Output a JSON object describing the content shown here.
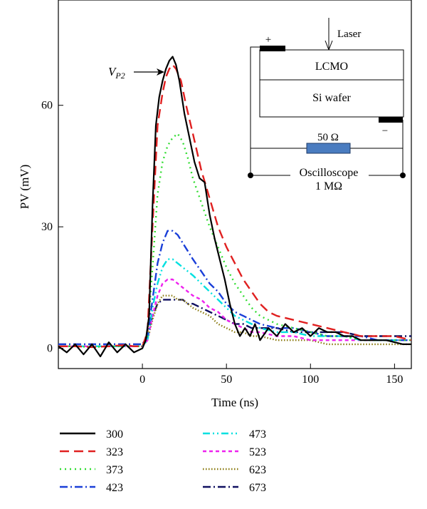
{
  "chart_data": {
    "type": "line",
    "xlabel": "Time (ns)",
    "ylabel": "PV (mV)",
    "xlim": [
      -50,
      160
    ],
    "ylim": [
      -5,
      86
    ],
    "x_ticks": [
      "0",
      "50",
      "100",
      "150"
    ],
    "y_ticks": [
      "0",
      "30",
      "60"
    ],
    "x_tick_values": [
      0,
      50,
      100,
      150
    ],
    "y_tick_values": [
      0,
      30,
      60
    ],
    "legend_position": "below",
    "series": [
      {
        "name": "300",
        "color": "#000000",
        "dash": "solid",
        "x": [
          -50,
          -45,
          -40,
          -35,
          -30,
          -25,
          -20,
          -15,
          -10,
          -5,
          0,
          2,
          4,
          6,
          8,
          10,
          12,
          14,
          16,
          18,
          20,
          22,
          25,
          28,
          31,
          34,
          37,
          40,
          43,
          46,
          49,
          52,
          55,
          58,
          61,
          64,
          67,
          70,
          75,
          80,
          85,
          90,
          95,
          100,
          105,
          110,
          115,
          120,
          125,
          130,
          135,
          140,
          145,
          150,
          155,
          160
        ],
        "y": [
          0.5,
          -1,
          1,
          -1.5,
          1,
          -2,
          1.5,
          -1,
          1,
          -1,
          0,
          2,
          8,
          35,
          55,
          62,
          66,
          69,
          71,
          72,
          70,
          66,
          58,
          52,
          46,
          42,
          41,
          33,
          27,
          22,
          17,
          11,
          6,
          3,
          5,
          3,
          6,
          2,
          5,
          3,
          6,
          4,
          5,
          3,
          5,
          4,
          4,
          3,
          3,
          2,
          2,
          2,
          2,
          1.5,
          1,
          1
        ]
      },
      {
        "name": "323",
        "color": "#e02020",
        "dash": "long",
        "x": [
          -50,
          -40,
          -30,
          -20,
          -10,
          -5,
          0,
          3,
          6,
          9,
          12,
          14,
          16,
          18,
          20,
          23,
          26,
          30,
          35,
          40,
          45,
          50,
          55,
          60,
          65,
          70,
          75,
          80,
          90,
          100,
          110,
          120,
          130,
          140,
          150,
          160
        ],
        "y": [
          0.5,
          0.5,
          0.3,
          0.5,
          0.8,
          0.5,
          0.5,
          4,
          30,
          55,
          63,
          67,
          69,
          70,
          69,
          66,
          60,
          53,
          44,
          37,
          30,
          25,
          21,
          17,
          14,
          11,
          9,
          8,
          7,
          6,
          5,
          4,
          3,
          3,
          3,
          2
        ]
      },
      {
        "name": "373",
        "color": "#33dd33",
        "dash": "dot",
        "x": [
          -50,
          -40,
          -30,
          -20,
          -10,
          -5,
          0,
          3,
          6,
          9,
          12,
          15,
          18,
          21,
          24,
          27,
          30,
          35,
          40,
          45,
          50,
          55,
          60,
          65,
          70,
          80,
          90,
          100,
          110,
          120,
          130,
          140,
          150,
          160
        ],
        "y": [
          0.5,
          0.5,
          0.3,
          0.5,
          0.5,
          0.5,
          0.5,
          3,
          20,
          38,
          46,
          50,
          52,
          53,
          51,
          47,
          42,
          36,
          30,
          25,
          20,
          16,
          13,
          10,
          8,
          6,
          5,
          4,
          3,
          3,
          2,
          2,
          2,
          2
        ]
      },
      {
        "name": "423",
        "color": "#1a3fd8",
        "dash": "dashdot",
        "x": [
          -50,
          -40,
          -30,
          -20,
          -10,
          -5,
          0,
          3,
          6,
          9,
          12,
          15,
          18,
          21,
          24,
          27,
          30,
          35,
          40,
          45,
          50,
          55,
          60,
          65,
          70,
          80,
          90,
          100,
          110,
          120,
          130,
          140,
          150,
          160
        ],
        "y": [
          1,
          1,
          1,
          1,
          1,
          1,
          1,
          3,
          12,
          21,
          26,
          29,
          29,
          28,
          26,
          24,
          22,
          19,
          16,
          14,
          11,
          9,
          8,
          7,
          6,
          5,
          5,
          4,
          3,
          3,
          3,
          2,
          2,
          2
        ]
      },
      {
        "name": "473",
        "color": "#00e0e0",
        "dash": "dashdotdot",
        "x": [
          -50,
          -40,
          -30,
          -20,
          -10,
          -5,
          0,
          3,
          6,
          9,
          12,
          15,
          18,
          21,
          24,
          27,
          30,
          35,
          40,
          45,
          50,
          55,
          60,
          65,
          70,
          80,
          90,
          100,
          110,
          120,
          130,
          140,
          150,
          160
        ],
        "y": [
          0.5,
          0.5,
          0.5,
          0.5,
          0.5,
          0.5,
          0.5,
          2,
          10,
          16,
          20,
          22,
          22,
          21,
          20,
          19,
          18,
          16,
          14,
          12,
          10,
          8,
          7,
          6,
          5,
          4,
          4,
          3,
          3,
          3,
          2,
          2,
          2,
          2
        ]
      },
      {
        "name": "523",
        "color": "#ee22ee",
        "dash": "short",
        "x": [
          -50,
          -40,
          -30,
          -20,
          -10,
          -5,
          0,
          3,
          6,
          9,
          12,
          15,
          18,
          21,
          24,
          27,
          30,
          35,
          40,
          45,
          50,
          55,
          60,
          65,
          70,
          80,
          90,
          100,
          110,
          120,
          130,
          140,
          150,
          160
        ],
        "y": [
          0.5,
          0.5,
          0.5,
          0.5,
          0.5,
          0.5,
          0.5,
          2,
          8,
          13,
          16,
          17,
          17,
          16,
          15,
          14,
          13,
          12,
          10,
          9,
          7,
          6,
          5,
          4,
          4,
          3,
          3,
          2,
          2,
          2,
          2,
          2,
          2,
          2
        ]
      },
      {
        "name": "623",
        "color": "#8a7a10",
        "dash": "fine",
        "x": [
          -50,
          -40,
          -30,
          -20,
          -10,
          -5,
          0,
          3,
          6,
          9,
          12,
          15,
          18,
          21,
          24,
          27,
          30,
          35,
          40,
          45,
          50,
          55,
          60,
          65,
          70,
          80,
          90,
          100,
          110,
          120,
          130,
          140,
          150,
          160
        ],
        "y": [
          0.5,
          0.5,
          0.5,
          0.5,
          0.5,
          0.5,
          0.5,
          2,
          7,
          11,
          13,
          13,
          13,
          12,
          12,
          11,
          10,
          9,
          8,
          6,
          5,
          4,
          4,
          3,
          3,
          2,
          2,
          2,
          1,
          1,
          1,
          1,
          1,
          1
        ]
      },
      {
        "name": "673",
        "color": "#101060",
        "dash": "dashdot",
        "x": [
          -50,
          -40,
          -30,
          -20,
          -10,
          -5,
          0,
          3,
          6,
          9,
          12,
          15,
          18,
          21,
          24,
          27,
          30,
          35,
          40,
          45,
          50,
          55,
          60,
          65,
          70,
          80,
          90,
          100,
          110,
          120,
          130,
          140,
          150,
          160
        ],
        "y": [
          1,
          1,
          1,
          1,
          1,
          1,
          1,
          3,
          8,
          11,
          12,
          12,
          12,
          12,
          12,
          11,
          11,
          10,
          9,
          8,
          7,
          6,
          6,
          5,
          5,
          5,
          4,
          4,
          4,
          4,
          3,
          3,
          3,
          3
        ]
      }
    ],
    "annotation": {
      "label": "V",
      "subscript": "P2"
    },
    "inset": {
      "laser_label": "Laser",
      "top_layer": "LCMO",
      "bottom_layer": "Si wafer",
      "plus": "+",
      "minus": "−",
      "resistor": "50 Ω",
      "scope_line1": "Oscilloscope",
      "scope_line2": "1 MΩ"
    }
  }
}
